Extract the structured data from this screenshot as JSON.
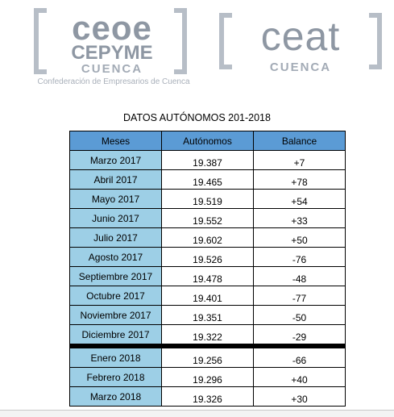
{
  "logos": {
    "ceoe": {
      "line1": "ceoe",
      "line2": "CEPYME",
      "line3": "CUENCA",
      "tagline": "Confederación de Empresarios de Cuenca"
    },
    "ceat": {
      "line1": "ceat",
      "line3": "CUENCA"
    }
  },
  "title": "DATOS AUTÓNOMOS 201-2018",
  "table": {
    "headers": [
      "Meses",
      "Autónomos",
      "Balance"
    ],
    "rows_2017": [
      {
        "month": "Marzo 2017",
        "value": "19.387",
        "balance": "+7"
      },
      {
        "month": "Abril 2017",
        "value": "19.465",
        "balance": "+78"
      },
      {
        "month": "Mayo 2017",
        "value": "19.519",
        "balance": "+54"
      },
      {
        "month": "Junio 2017",
        "value": "19.552",
        "balance": "+33"
      },
      {
        "month": "Julio 2017",
        "value": "19.602",
        "balance": "+50"
      },
      {
        "month": "Agosto 2017",
        "value": "19.526",
        "balance": "-76"
      },
      {
        "month": "Septiembre 2017",
        "value": "19.478",
        "balance": "-48"
      },
      {
        "month": "Octubre 2017",
        "value": "19.401",
        "balance": "-77"
      },
      {
        "month": "Noviembre 2017",
        "value": "19.351",
        "balance": "-50"
      },
      {
        "month": "Diciembre 2017",
        "value": "19.322",
        "balance": "-29"
      }
    ],
    "rows_2018": [
      {
        "month": "Enero 2018",
        "value": "19.256",
        "balance": "-66"
      },
      {
        "month": "Febrero 2018",
        "value": "19.296",
        "balance": "+40"
      },
      {
        "month": "Marzo 2018",
        "value": "19.326",
        "balance": "+30"
      }
    ]
  },
  "colors": {
    "header_bg": "#5b9bd5",
    "month_bg": "#9dcfe6",
    "logo_gray": "#8e97a3"
  }
}
